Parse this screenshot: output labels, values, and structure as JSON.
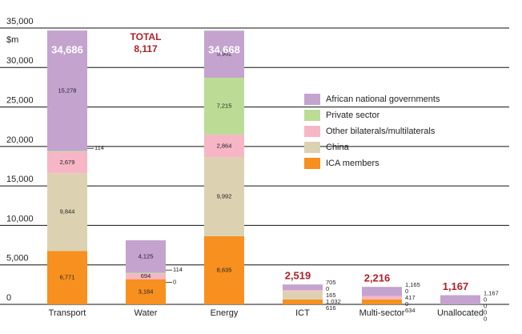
{
  "chart_data": {
    "type": "stacked-bar",
    "y_unit": "$m",
    "categories": [
      "Transport",
      "Water",
      "Energy",
      "ICT",
      "Multi-sector",
      "Unallocated"
    ],
    "series": [
      {
        "name": "ICA members",
        "color": "#f7901e",
        "values": [
          6771,
          3184,
          8635,
          616,
          634,
          0
        ],
        "value_labels": [
          "6,771",
          "3,184",
          "8,635",
          "616",
          "634",
          "0"
        ]
      },
      {
        "name": "China",
        "color": "#dcd2b2",
        "values": [
          9844,
          0,
          9992,
          1032,
          0,
          0
        ],
        "value_labels": [
          "9,844",
          "0",
          "9,992",
          "1,032",
          "0",
          "0"
        ]
      },
      {
        "name": "Other bilaterals/multilaterals",
        "color": "#f6b6c6",
        "values": [
          2679,
          694,
          2864,
          165,
          417,
          0
        ],
        "value_labels": [
          "2,679",
          "694",
          "2,864",
          "165",
          "417",
          "0"
        ]
      },
      {
        "name": "Private sector",
        "color": "#bcdc96",
        "values": [
          114,
          114,
          7215,
          0,
          0,
          0
        ],
        "value_labels": [
          "114",
          "114",
          "7,215",
          "0",
          "0",
          "0"
        ]
      },
      {
        "name": "African national governments",
        "color": "#c4a3cf",
        "values": [
          15278,
          4125,
          5962,
          705,
          1165,
          1167
        ],
        "value_labels": [
          "15,278",
          "4,125",
          "5,962",
          "705",
          "1,165",
          "1,167"
        ]
      }
    ],
    "totals": {
      "caption": "TOTAL",
      "values": [
        34686,
        8117,
        34668,
        2519,
        2216,
        1167
      ],
      "value_labels": [
        "34,686",
        "8,117",
        "34,668",
        "2,519",
        "2,216",
        "1,167"
      ]
    },
    "ylim": [
      0,
      35000
    ],
    "yticks": [
      0,
      {
        "value": 5000,
        "label": "5,000"
      },
      {
        "value": 10000,
        "label": "10,000"
      },
      {
        "value": 15000,
        "label": "15,000"
      },
      {
        "value": 20000,
        "label": "20,000"
      },
      {
        "value": 25000,
        "label": "25,000"
      },
      {
        "value": 30000,
        "label": "30,000"
      },
      {
        "value": 35000,
        "label": "35,000"
      }
    ],
    "grid": true
  }
}
